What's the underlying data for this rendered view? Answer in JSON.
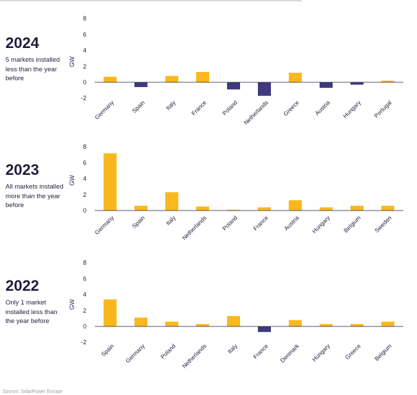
{
  "colors": {
    "positive": "#fbb81e",
    "negative": "#3f3a7e",
    "text": "#1f1d3d",
    "axis": "#1f1d3d"
  },
  "panels": [
    {
      "year": "2024",
      "description": "5 markets installed less than the year before"
    },
    {
      "year": "2023",
      "description": "All markets installed more than the year before"
    },
    {
      "year": "2022",
      "description": "Only 1 market installed less than the year before"
    }
  ],
  "source": "Source: SolarPower Europe",
  "chart_data": [
    {
      "type": "bar",
      "title": "2024",
      "ylabel": "GW",
      "ylim": [
        -2,
        8
      ],
      "yticks": [
        8,
        6,
        4,
        2,
        0,
        -2
      ],
      "categories": [
        "Germany",
        "Spain",
        "Italy",
        "France",
        "Poland",
        "Netherlands",
        "Greece",
        "Austria",
        "Hungary",
        "Portugal"
      ],
      "values": [
        0.7,
        -0.6,
        0.8,
        1.3,
        -0.9,
        -1.7,
        1.2,
        -0.7,
        -0.3,
        0.2
      ]
    },
    {
      "type": "bar",
      "title": "2023",
      "ylabel": "GW",
      "ylim": [
        0,
        8
      ],
      "yticks": [
        8,
        6,
        4,
        2,
        0
      ],
      "categories": [
        "Germany",
        "Spain",
        "Italy",
        "Netherlands",
        "Poland",
        "France",
        "Austria",
        "Hungary",
        "Belgium",
        "Sweden"
      ],
      "values": [
        7.2,
        0.6,
        2.3,
        0.5,
        0.1,
        0.4,
        1.3,
        0.4,
        0.6,
        0.6
      ]
    },
    {
      "type": "bar",
      "title": "2022",
      "ylabel": "GW",
      "ylim": [
        -2,
        8
      ],
      "yticks": [
        8,
        6,
        4,
        2,
        0,
        -2
      ],
      "categories": [
        "Spain",
        "Germany",
        "Poland",
        "Netherlands",
        "Italy",
        "France",
        "Denmark",
        "Hungary",
        "Greece",
        "Belgium"
      ],
      "values": [
        3.4,
        1.1,
        0.6,
        0.3,
        1.3,
        -0.7,
        0.8,
        0.3,
        0.3,
        0.6
      ]
    }
  ]
}
